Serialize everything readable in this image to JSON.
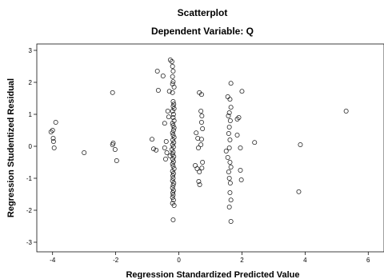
{
  "chart_data": {
    "type": "scatter",
    "title": "Scatterplot",
    "subtitle": "Dependent Variable: Q",
    "xlabel": "Regression Standardized Predicted Value",
    "ylabel": "Regression Studentized Residual",
    "xlim": [
      -4.5,
      6.5
    ],
    "ylim": [
      -3.3,
      3.2
    ],
    "x_ticks": [
      -4,
      -2,
      0,
      2,
      4,
      6
    ],
    "y_ticks": [
      -3,
      -2,
      -1,
      0,
      1,
      2,
      3
    ],
    "grid": false,
    "x_tick_labels": [
      "-4",
      "-2",
      "0",
      "2",
      "4",
      "6"
    ],
    "y_tick_labels": [
      "-3",
      "-2",
      "-1",
      "0",
      "1",
      "2",
      "3"
    ],
    "points": [
      [
        -3.9,
        0.75
      ],
      [
        -4.0,
        0.5
      ],
      [
        -4.05,
        0.45
      ],
      [
        -3.98,
        0.25
      ],
      [
        -3.97,
        0.15
      ],
      [
        -3.95,
        -0.05
      ],
      [
        -3.0,
        -0.2
      ],
      [
        -2.1,
        1.68
      ],
      [
        -2.08,
        0.1
      ],
      [
        -2.1,
        0.05
      ],
      [
        -2.02,
        -0.1
      ],
      [
        -1.97,
        -0.45
      ],
      [
        -0.85,
        0.22
      ],
      [
        -0.8,
        -0.08
      ],
      [
        -0.72,
        -0.12
      ],
      [
        -0.68,
        2.35
      ],
      [
        -0.65,
        1.75
      ],
      [
        -0.5,
        2.2
      ],
      [
        -0.45,
        0.72
      ],
      [
        -0.45,
        -0.05
      ],
      [
        -0.42,
        -0.4
      ],
      [
        -0.4,
        0.15
      ],
      [
        -0.35,
        1.1
      ],
      [
        -0.3,
        1.72
      ],
      [
        -0.32,
        0.92
      ],
      [
        -0.38,
        -0.2
      ],
      [
        -0.28,
        -0.3
      ],
      [
        -0.27,
        2.7
      ],
      [
        -0.22,
        2.65
      ],
      [
        -0.2,
        2.5
      ],
      [
        -0.18,
        2.35
      ],
      [
        -0.2,
        2.18
      ],
      [
        -0.18,
        2.02
      ],
      [
        -0.2,
        1.95
      ],
      [
        -0.15,
        1.85
      ],
      [
        -0.2,
        1.68
      ],
      [
        -0.18,
        1.4
      ],
      [
        -0.16,
        1.32
      ],
      [
        -0.18,
        1.25
      ],
      [
        -0.15,
        1.18
      ],
      [
        -0.2,
        1.1
      ],
      [
        -0.17,
        1.0
      ],
      [
        -0.18,
        0.9
      ],
      [
        -0.15,
        0.8
      ],
      [
        -0.2,
        0.72
      ],
      [
        -0.18,
        0.65
      ],
      [
        -0.15,
        0.58
      ],
      [
        -0.17,
        0.5
      ],
      [
        -0.2,
        0.42
      ],
      [
        -0.18,
        0.35
      ],
      [
        -0.15,
        0.28
      ],
      [
        -0.19,
        0.2
      ],
      [
        -0.16,
        0.12
      ],
      [
        -0.2,
        0.05
      ],
      [
        -0.17,
        -0.02
      ],
      [
        -0.22,
        -0.1
      ],
      [
        -0.18,
        -0.18
      ],
      [
        -0.2,
        -0.25
      ],
      [
        -0.16,
        -0.32
      ],
      [
        -0.19,
        -0.4
      ],
      [
        -0.17,
        -0.48
      ],
      [
        -0.2,
        -0.55
      ],
      [
        -0.18,
        -0.62
      ],
      [
        -0.15,
        -0.7
      ],
      [
        -0.2,
        -0.78
      ],
      [
        -0.17,
        -0.85
      ],
      [
        -0.19,
        -0.92
      ],
      [
        -0.18,
        -1.0
      ],
      [
        -0.2,
        -1.08
      ],
      [
        -0.16,
        -1.15
      ],
      [
        -0.18,
        -1.22
      ],
      [
        -0.2,
        -1.3
      ],
      [
        -0.17,
        -1.38
      ],
      [
        -0.19,
        -1.45
      ],
      [
        -0.18,
        -1.52
      ],
      [
        -0.2,
        -1.6
      ],
      [
        -0.17,
        -1.68
      ],
      [
        -0.2,
        -1.78
      ],
      [
        -0.15,
        -1.85
      ],
      [
        -0.18,
        -2.3
      ],
      [
        0.55,
        0.42
      ],
      [
        0.6,
        0.25
      ],
      [
        0.62,
        -0.05
      ],
      [
        0.52,
        -0.6
      ],
      [
        0.58,
        -0.7
      ],
      [
        0.65,
        -0.8
      ],
      [
        0.63,
        -1.1
      ],
      [
        0.66,
        -1.2
      ],
      [
        0.65,
        1.68
      ],
      [
        0.72,
        1.62
      ],
      [
        0.7,
        1.1
      ],
      [
        0.73,
        0.95
      ],
      [
        0.72,
        0.75
      ],
      [
        0.75,
        0.55
      ],
      [
        0.72,
        0.22
      ],
      [
        0.7,
        0.05
      ],
      [
        0.75,
        -0.5
      ],
      [
        0.73,
        -0.68
      ],
      [
        1.55,
        1.55
      ],
      [
        1.62,
        1.47
      ],
      [
        1.65,
        1.22
      ],
      [
        1.6,
        1.05
      ],
      [
        1.57,
        0.95
      ],
      [
        1.63,
        0.8
      ],
      [
        1.6,
        0.6
      ],
      [
        1.58,
        0.4
      ],
      [
        1.62,
        0.2
      ],
      [
        1.5,
        -0.15
      ],
      [
        1.6,
        -0.05
      ],
      [
        1.55,
        -0.35
      ],
      [
        1.62,
        -0.5
      ],
      [
        1.65,
        -0.65
      ],
      [
        1.58,
        -0.8
      ],
      [
        1.6,
        -1.0
      ],
      [
        1.63,
        -1.15
      ],
      [
        1.62,
        -1.45
      ],
      [
        1.65,
        -1.68
      ],
      [
        1.6,
        -1.9
      ],
      [
        1.65,
        -2.35
      ],
      [
        1.65,
        1.97
      ],
      [
        1.85,
        0.85
      ],
      [
        1.9,
        0.9
      ],
      [
        1.85,
        0.35
      ],
      [
        1.95,
        -0.05
      ],
      [
        1.95,
        -0.75
      ],
      [
        1.98,
        -1.05
      ],
      [
        2.0,
        1.72
      ],
      [
        2.4,
        0.12
      ],
      [
        3.8,
        -1.42
      ],
      [
        3.85,
        0.05
      ],
      [
        5.3,
        1.1
      ]
    ]
  }
}
